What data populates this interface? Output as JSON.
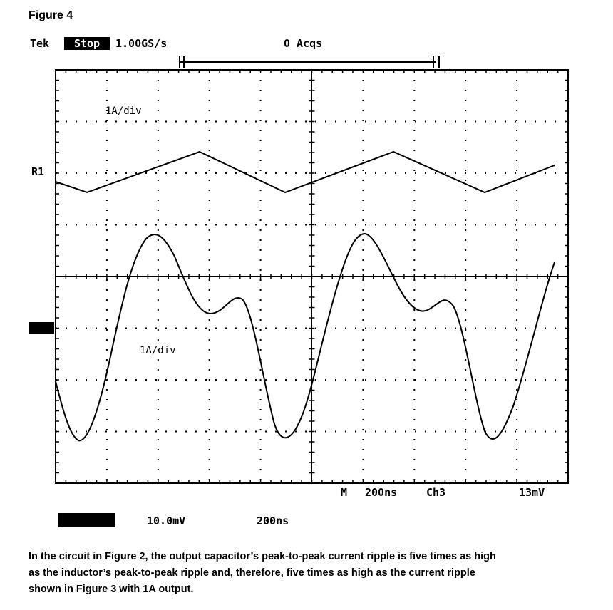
{
  "figure_label": "Figure 4",
  "scope": {
    "header": {
      "brand": "Tek",
      "status": "Stop",
      "sample_rate": "1.00GS/s",
      "acquisitions": "0 Acqs"
    },
    "traces": [
      {
        "marker": "R1",
        "scale": "1A/div"
      },
      {
        "scale": "1A/div"
      }
    ],
    "readout": {
      "mode": "M",
      "timebase": "200ns",
      "channel": "Ch3",
      "level": "13mV"
    },
    "footer": {
      "ref_volts": "10.0mV",
      "ref_time": "200ns"
    }
  },
  "caption": {
    "lines": [
      "In the circuit in Figure 2, the output capacitor’s peak-to-peak current ripple is five times as high",
      "as the inductor’s peak-to-peak ripple and, therefore, five times as high as the current ripple",
      "shown in Figure 3 with 1A output."
    ]
  }
}
